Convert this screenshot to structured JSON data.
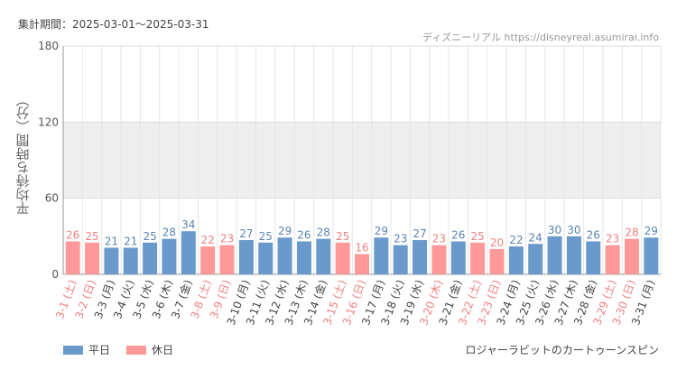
{
  "header": {
    "period": "集計期間：2025-03-01～2025-03-31",
    "site": "ディズニーリアル https://disneyreal.asumirai.info"
  },
  "footer": {
    "attraction": "ロジャーラビットのカートゥーンスピン"
  },
  "colors": {
    "weekday": "#6a9acb",
    "holiday": "#ff9999",
    "weekday_text": "#5b84b1",
    "holiday_text": "#f08080",
    "band": "#eeeeee",
    "grid": "#e6e6e6"
  },
  "chart_data": {
    "type": "bar",
    "ylabel": "平均待ち時間（分）",
    "ylim": [
      0,
      180
    ],
    "yticks": [
      0,
      60,
      120,
      180
    ],
    "grid": true,
    "legend_position": "bottom-left",
    "categories": [
      "3-1 (土)",
      "3-2 (日)",
      "3-3 (月)",
      "3-4 (火)",
      "3-5 (水)",
      "3-6 (木)",
      "3-7 (金)",
      "3-8 (土)",
      "3-9 (日)",
      "3-10 (月)",
      "3-11 (火)",
      "3-12 (水)",
      "3-13 (木)",
      "3-14 (金)",
      "3-15 (土)",
      "3-16 (日)",
      "3-17 (月)",
      "3-18 (火)",
      "3-19 (水)",
      "3-20 (木)",
      "3-21 (金)",
      "3-22 (土)",
      "3-23 (日)",
      "3-24 (月)",
      "3-25 (火)",
      "3-26 (水)",
      "3-27 (木)",
      "3-28 (金)",
      "3-29 (土)",
      "3-30 (日)",
      "3-31 (月)"
    ],
    "values": [
      26,
      25,
      21,
      21,
      25,
      28,
      34,
      22,
      23,
      27,
      25,
      29,
      26,
      28,
      25,
      16,
      29,
      23,
      27,
      23,
      26,
      25,
      20,
      22,
      24,
      30,
      30,
      26,
      23,
      28,
      29
    ],
    "day_type": [
      "休日",
      "休日",
      "平日",
      "平日",
      "平日",
      "平日",
      "平日",
      "休日",
      "休日",
      "平日",
      "平日",
      "平日",
      "平日",
      "平日",
      "休日",
      "休日",
      "平日",
      "平日",
      "平日",
      "休日",
      "平日",
      "休日",
      "休日",
      "平日",
      "平日",
      "平日",
      "平日",
      "平日",
      "休日",
      "休日",
      "平日"
    ],
    "legend": [
      {
        "name": "平日",
        "color": "#6a9acb"
      },
      {
        "name": "休日",
        "color": "#ff9999"
      }
    ]
  }
}
